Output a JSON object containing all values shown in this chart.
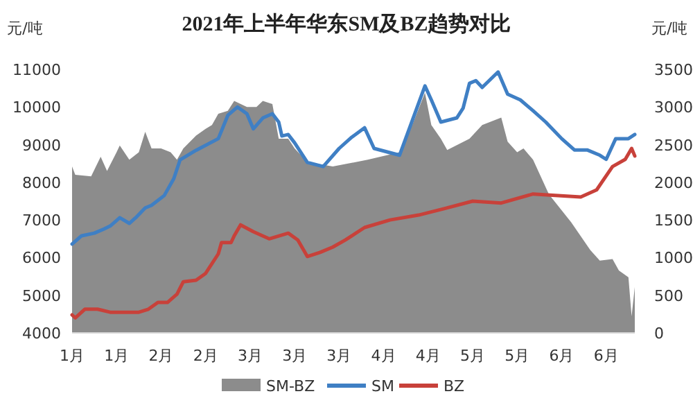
{
  "chart_data": {
    "type": "line",
    "title": "2021年上半年华东SM及BZ趋势对比",
    "ylabel": "元/吨",
    "y2label": "元/吨",
    "xlim": [
      "--01-04",
      "--06-30"
    ],
    "xticks": [
      {
        "value": "--01-04",
        "label": "1月"
      },
      {
        "value": "--01-18",
        "label": "1月"
      },
      {
        "value": "--02-01",
        "label": "2月"
      },
      {
        "value": "--02-15",
        "label": "2月"
      },
      {
        "value": "--03-01",
        "label": "3月"
      },
      {
        "value": "--03-15",
        "label": "3月"
      },
      {
        "value": "--03-29",
        "label": "3月"
      },
      {
        "value": "--04-12",
        "label": "4月"
      },
      {
        "value": "--04-26",
        "label": "4月"
      },
      {
        "value": "--05-10",
        "label": "5月"
      },
      {
        "value": "--05-24",
        "label": "5月"
      },
      {
        "value": "--06-07",
        "label": "6月"
      },
      {
        "value": "--06-21",
        "label": "6月"
      }
    ],
    "ylim": [
      4000,
      11000
    ],
    "yticks": [
      4000,
      5000,
      6000,
      7000,
      8000,
      9000,
      10000,
      11000
    ],
    "y2lim": [
      0,
      3500
    ],
    "y2ticks": [
      0,
      500,
      1000,
      1500,
      2000,
      2500,
      3000,
      3500
    ],
    "legend": "bottom",
    "series": [
      {
        "name": "SM-BZ",
        "type": "area",
        "axis": "y2",
        "color": "#8c8c8c",
        "x": [
          "--01-04",
          "--01-05",
          "--01-10",
          "--01-13",
          "--01-15",
          "--01-18",
          "--01-19",
          "--01-22",
          "--01-25",
          "--01-27",
          "--01-29",
          "--02-01",
          "--02-04",
          "--02-06",
          "--02-08",
          "--02-12",
          "--02-15",
          "--02-17",
          "--02-19",
          "--02-22",
          "--02-24",
          "--02-28",
          "--03-03",
          "--03-05",
          "--03-08",
          "--03-10",
          "--03-13",
          "--03-15",
          "--03-19",
          "--03-27",
          "--04-07",
          "--04-17",
          "--04-21",
          "--04-25",
          "--04-27",
          "--04-30",
          "--05-02",
          "--05-09",
          "--05-13",
          "--05-19",
          "--05-21",
          "--05-24",
          "--05-26",
          "--05-29",
          "--06-03",
          "--06-10",
          "--06-16",
          "--06-19",
          "--06-23",
          "--06-25",
          "--06-28",
          "--06-29",
          "--06-30"
        ],
        "values": [
          2210,
          2100,
          2080,
          2340,
          2150,
          2400,
          2490,
          2300,
          2400,
          2670,
          2450,
          2450,
          2400,
          2300,
          2450,
          2620,
          2710,
          2760,
          2910,
          2950,
          3080,
          3000,
          3000,
          3080,
          3040,
          2580,
          2580,
          2450,
          2270,
          2210,
          2300,
          2400,
          2760,
          3190,
          2760,
          2580,
          2430,
          2580,
          2760,
          2860,
          2540,
          2400,
          2450,
          2300,
          1840,
          1470,
          1100,
          960,
          980,
          830,
          740,
          220,
          610
        ]
      },
      {
        "name": "SM",
        "color": "#3f7fc4",
        "x": [
          "--01-04",
          "--01-07",
          "--01-11",
          "--01-14",
          "--01-16",
          "--01-19",
          "--01-22",
          "--01-24",
          "--01-27",
          "--01-29",
          "--02-02",
          "--02-05",
          "--02-07",
          "--02-12",
          "--02-19",
          "--02-22",
          "--02-25",
          "--02-28",
          "--03-02",
          "--03-05",
          "--03-08",
          "--03-10",
          "--03-11",
          "--03-13",
          "--03-15",
          "--03-19",
          "--03-24",
          "--03-29",
          "--04-02",
          "--04-06",
          "--04-09",
          "--04-17",
          "--04-21",
          "--04-25",
          "--04-27",
          "--04-30",
          "--05-05",
          "--05-07",
          "--05-09",
          "--05-11",
          "--05-13",
          "--05-18",
          "--05-21",
          "--05-25",
          "--05-29",
          "--06-02",
          "--06-07",
          "--06-11",
          "--06-15",
          "--06-19",
          "--06-21",
          "--06-24",
          "--06-28",
          "--06-30"
        ],
        "values": [
          6360,
          6580,
          6650,
          6760,
          6840,
          7060,
          6910,
          7060,
          7320,
          7390,
          7650,
          8100,
          8600,
          8850,
          9160,
          9780,
          10000,
          9820,
          9420,
          9710,
          9820,
          9600,
          9230,
          9270,
          9050,
          8530,
          8420,
          8900,
          9200,
          9450,
          8900,
          8720,
          9640,
          10560,
          10190,
          9600,
          9710,
          9970,
          10630,
          10700,
          10520,
          10930,
          10340,
          10190,
          9900,
          9600,
          9160,
          8860,
          8860,
          8720,
          8610,
          9160,
          9160,
          9270
        ]
      },
      {
        "name": "BZ",
        "color": "#c8413a",
        "x": [
          "--01-04",
          "--01-05",
          "--01-08",
          "--01-12",
          "--01-16",
          "--01-21",
          "--01-25",
          "--01-28",
          "--01-31",
          "--02-03",
          "--02-06",
          "--02-08",
          "--02-12",
          "--02-15",
          "--02-19",
          "--02-20",
          "--02-23",
          "--02-24",
          "--02-26",
          "--03-02",
          "--03-07",
          "--03-13",
          "--03-16",
          "--03-19",
          "--03-23",
          "--03-27",
          "--03-31",
          "--04-06",
          "--04-14",
          "--04-23",
          "--05-01",
          "--05-10",
          "--05-19",
          "--05-29",
          "--06-05",
          "--06-13",
          "--06-18",
          "--06-23",
          "--06-27",
          "--06-29",
          "--06-30"
        ],
        "values": [
          4480,
          4400,
          4630,
          4630,
          4550,
          4550,
          4550,
          4630,
          4810,
          4810,
          5030,
          5360,
          5400,
          5580,
          6100,
          6400,
          6400,
          6580,
          6870,
          6690,
          6500,
          6650,
          6470,
          6030,
          6140,
          6280,
          6470,
          6800,
          7000,
          7130,
          7300,
          7500,
          7450,
          7690,
          7650,
          7610,
          7800,
          8420,
          8610,
          8900,
          8700
        ]
      }
    ]
  }
}
